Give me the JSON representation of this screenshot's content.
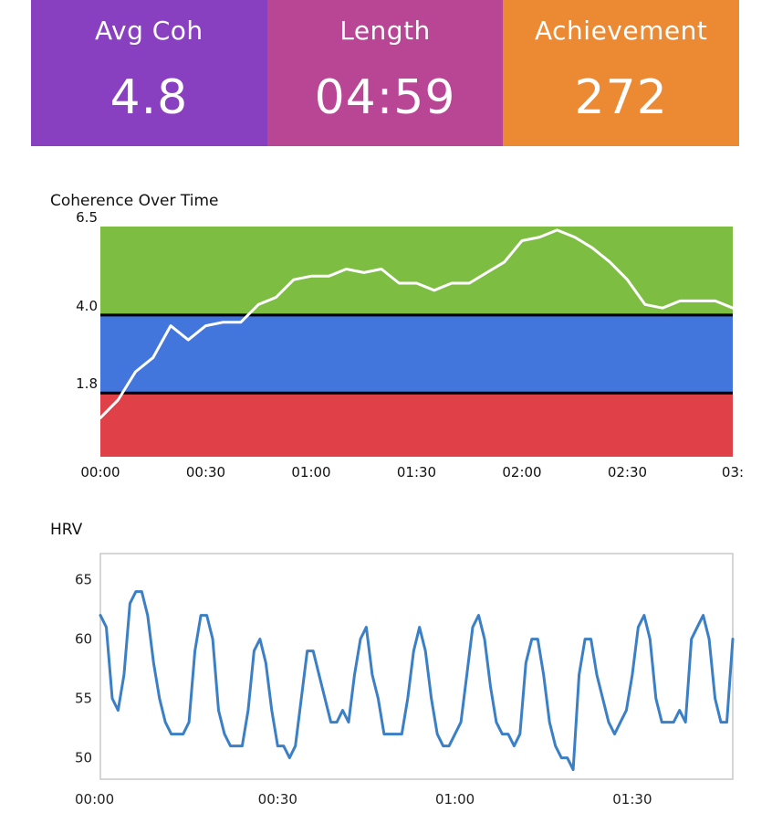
{
  "stats": [
    {
      "label": "Avg Coh",
      "value": "4.8",
      "color": "#8840c0"
    },
    {
      "label": "Length",
      "value": "04:59",
      "color": "#b94595"
    },
    {
      "label": "Achievement",
      "value": "272",
      "color": "#ec8a34"
    }
  ],
  "chart_data": [
    {
      "type": "line",
      "title": "Coherence Over Time",
      "xlabel": "",
      "ylabel": "",
      "x_unit": "seconds",
      "xlim": [
        0,
        180
      ],
      "ylim": [
        0,
        6.5
      ],
      "x_ticks": [
        {
          "value": 0,
          "label": "00:00"
        },
        {
          "value": 30,
          "label": "00:30"
        },
        {
          "value": 60,
          "label": "01:00"
        },
        {
          "value": 90,
          "label": "01:30"
        },
        {
          "value": 120,
          "label": "02:00"
        },
        {
          "value": 150,
          "label": "02:30"
        },
        {
          "value": 180,
          "label": "03:"
        }
      ],
      "y_ticks": [
        {
          "value": 1.8,
          "label": "1.8"
        },
        {
          "value": 4.0,
          "label": "4.0"
        },
        {
          "value": 6.5,
          "label": "6.5"
        }
      ],
      "bands": [
        {
          "from": 0,
          "to": 1.8,
          "color": "#e04048"
        },
        {
          "from": 1.8,
          "to": 4.0,
          "color": "#4276dc"
        },
        {
          "from": 4.0,
          "to": 6.5,
          "color": "#7cbd42"
        }
      ],
      "threshold_lines": [
        1.8,
        4.0
      ],
      "line_color": "#ffffff",
      "grid": false,
      "x": [
        0,
        5,
        10,
        15,
        20,
        25,
        30,
        35,
        40,
        45,
        50,
        55,
        60,
        65,
        70,
        75,
        80,
        85,
        90,
        95,
        100,
        105,
        110,
        115,
        120,
        125,
        130,
        135,
        140,
        145,
        150,
        155,
        160,
        165,
        170,
        175,
        180
      ],
      "y": [
        1.1,
        1.6,
        2.4,
        2.8,
        3.7,
        3.3,
        3.7,
        3.8,
        3.8,
        4.3,
        4.5,
        5.0,
        5.1,
        5.1,
        5.3,
        5.2,
        5.3,
        4.9,
        4.9,
        4.7,
        4.9,
        4.9,
        5.2,
        5.5,
        6.1,
        6.2,
        6.4,
        6.2,
        5.9,
        5.5,
        5.0,
        4.3,
        4.2,
        4.4,
        4.4,
        4.4,
        4.2
      ]
    },
    {
      "type": "line",
      "title": "HRV",
      "xlabel": "",
      "ylabel": "",
      "x_unit": "seconds",
      "xlim": [
        0,
        107
      ],
      "ylim": [
        48.2,
        67.2
      ],
      "x_ticks": [
        {
          "value": 0,
          "label": "00:00"
        },
        {
          "value": 30,
          "label": "00:30"
        },
        {
          "value": 60,
          "label": "01:00"
        },
        {
          "value": 90,
          "label": "01:30"
        }
      ],
      "y_ticks": [
        {
          "value": 50,
          "label": "50"
        },
        {
          "value": 55,
          "label": "55"
        },
        {
          "value": 60,
          "label": "60"
        },
        {
          "value": 65,
          "label": "65"
        }
      ],
      "line_color": "#3b7fc6",
      "grid": false,
      "x": [
        0,
        1,
        2,
        3,
        4,
        5,
        6,
        7,
        8,
        9,
        10,
        11,
        12,
        13,
        14,
        15,
        16,
        17,
        18,
        19,
        20,
        21,
        22,
        23,
        24,
        25,
        26,
        27,
        28,
        29,
        30,
        31,
        32,
        33,
        34,
        35,
        36,
        37,
        38,
        39,
        40,
        41,
        42,
        43,
        44,
        45,
        46,
        47,
        48,
        49,
        50,
        51,
        52,
        53,
        54,
        55,
        56,
        57,
        58,
        59,
        60,
        61,
        62,
        63,
        64,
        65,
        66,
        67,
        68,
        69,
        70,
        71,
        72,
        73,
        74,
        75,
        76,
        77,
        78,
        79,
        80,
        81,
        82,
        83,
        84,
        85,
        86,
        87,
        88,
        89,
        90,
        91,
        92,
        93,
        94,
        95,
        96,
        97,
        98,
        99,
        100,
        101,
        102,
        103,
        104,
        105,
        106,
        107
      ],
      "y": [
        62,
        61,
        55,
        54,
        57,
        63,
        64,
        64,
        62,
        58,
        55,
        53,
        52,
        52,
        52,
        53,
        59,
        62,
        62,
        60,
        54,
        52,
        51,
        51,
        51,
        54,
        59,
        60,
        58,
        54,
        51,
        51,
        50,
        51,
        55,
        59,
        59,
        57,
        55,
        53,
        53,
        54,
        53,
        57,
        60,
        61,
        57,
        55,
        52,
        52,
        52,
        52,
        55,
        59,
        61,
        59,
        55,
        52,
        51,
        51,
        52,
        53,
        57,
        61,
        62,
        60,
        56,
        53,
        52,
        52,
        51,
        52,
        58,
        60,
        60,
        57,
        53,
        51,
        50,
        50,
        49,
        57,
        60,
        60,
        57,
        55,
        53,
        52,
        53,
        54,
        57,
        61,
        62,
        60,
        55,
        53,
        53,
        53,
        54,
        53,
        60,
        61,
        62,
        60,
        55,
        53,
        53,
        60
      ]
    }
  ]
}
